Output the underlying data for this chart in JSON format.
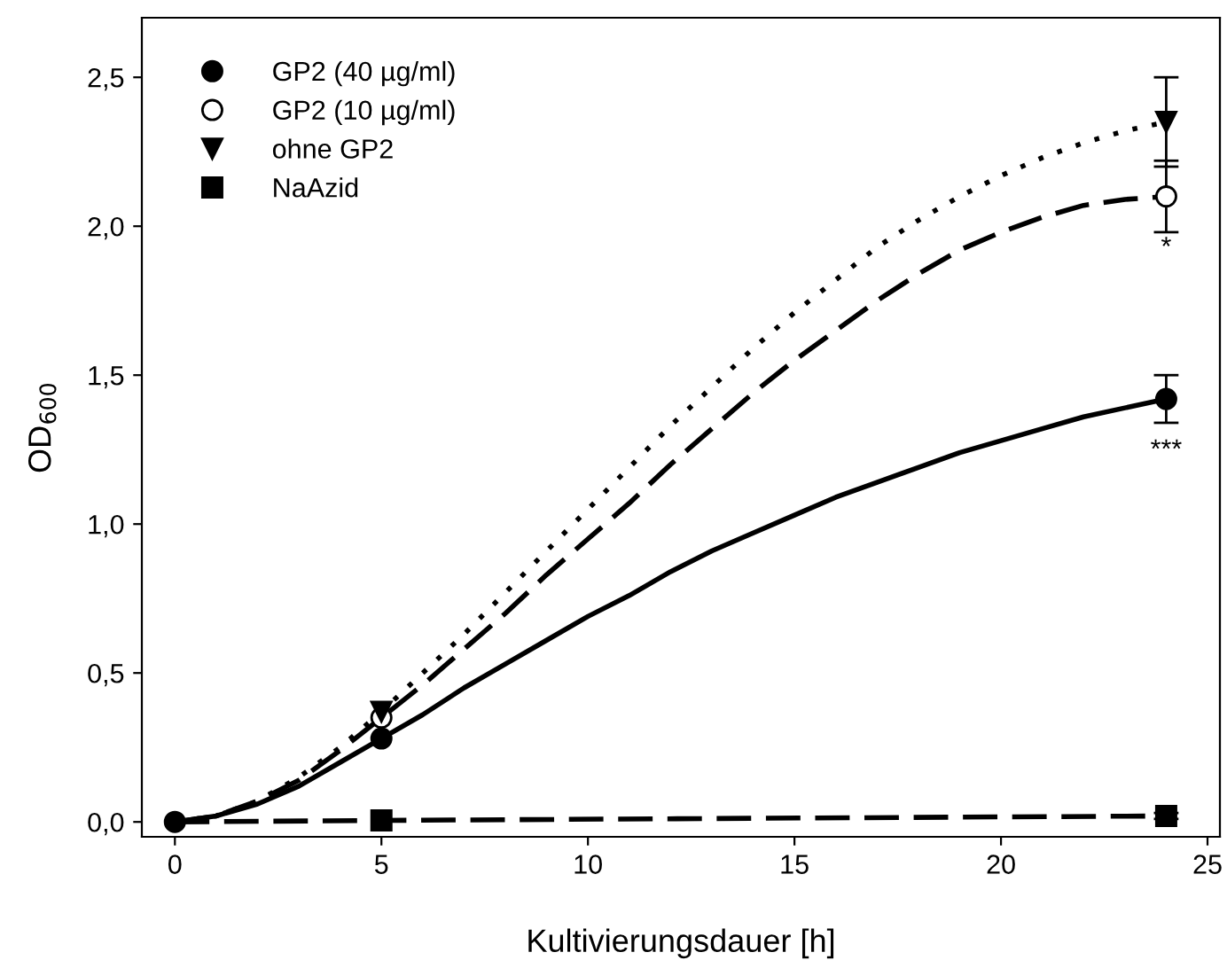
{
  "chart_data": {
    "type": "scatter",
    "xlabel": "Kultivierungsdauer [h]",
    "ylabel": "OD$_{600}$",
    "xlim": [
      -0.8,
      25.3
    ],
    "ylim": [
      -0.05,
      2.7
    ],
    "xticks": [
      0,
      5,
      10,
      15,
      20,
      25
    ],
    "yticks": [
      {
        "value": 0,
        "label": "0,0"
      },
      {
        "value": 0.5,
        "label": "0,5"
      },
      {
        "value": 1,
        "label": "1,0"
      },
      {
        "value": 1.5,
        "label": "1,5"
      },
      {
        "value": 2,
        "label": "2,0"
      },
      {
        "value": 2.5,
        "label": "2,5"
      }
    ],
    "grid": false,
    "legend": "top left",
    "series": [
      {
        "name": "GP2 (40 µg/ml)",
        "marker": "circle",
        "color": "#000000",
        "x": [
          0,
          5,
          24
        ],
        "values": [
          0,
          0.28,
          1.42
        ],
        "errors": [
          null,
          null,
          0.08
        ]
      },
      {
        "name": "GP2 (10 µg/ml)",
        "marker": "circle",
        "color": "#ffffff",
        "x": [
          5,
          24
        ],
        "values": [
          0.35,
          2.1
        ],
        "errors": [
          null,
          0.12
        ]
      },
      {
        "name": "ohne GP2",
        "marker": "triangle",
        "color": "#000000",
        "x": [
          5,
          24
        ],
        "values": [
          0.37,
          2.35
        ],
        "errors": [
          null,
          0.15
        ]
      },
      {
        "name": "NaAzid",
        "marker": "square",
        "color": "#000000",
        "x": [
          5,
          24
        ],
        "values": [
          0.005,
          0.02
        ],
        "errors": [
          null,
          0.01
        ]
      },
      {
        "type": "line",
        "line_style": "solid",
        "color": "#000000",
        "x": [
          0,
          1,
          2,
          3,
          4,
          5,
          6,
          7,
          8,
          9,
          10,
          11,
          12,
          13,
          14,
          15,
          16,
          17,
          18,
          19,
          20,
          21,
          22,
          23,
          24
        ],
        "values": [
          0,
          0.02,
          0.06,
          0.12,
          0.2,
          0.28,
          0.36,
          0.45,
          0.53,
          0.61,
          0.69,
          0.76,
          0.84,
          0.91,
          0.97,
          1.03,
          1.09,
          1.14,
          1.19,
          1.24,
          1.28,
          1.32,
          1.36,
          1.39,
          1.42
        ]
      },
      {
        "type": "line",
        "line_style": "dashed",
        "color": "#000000",
        "x": [
          0,
          1,
          2,
          3,
          4,
          5,
          6,
          7,
          8,
          9,
          10,
          11,
          12,
          13,
          14,
          15,
          16,
          17,
          18,
          19,
          20,
          21,
          22,
          23,
          24
        ],
        "values": [
          0,
          0.02,
          0.07,
          0.14,
          0.24,
          0.35,
          0.46,
          0.58,
          0.7,
          0.83,
          0.95,
          1.07,
          1.2,
          1.32,
          1.44,
          1.55,
          1.65,
          1.75,
          1.84,
          1.92,
          1.98,
          2.03,
          2.07,
          2.09,
          2.1
        ]
      },
      {
        "type": "line",
        "line_style": "dotted",
        "color": "#000000",
        "x": [
          0,
          1,
          2,
          3,
          4,
          5,
          6,
          7,
          8,
          9,
          10,
          11,
          12,
          13,
          14,
          15,
          16,
          17,
          18,
          19,
          20,
          21,
          22,
          23,
          24
        ],
        "values": [
          0,
          0.02,
          0.07,
          0.15,
          0.25,
          0.37,
          0.5,
          0.63,
          0.77,
          0.91,
          1.05,
          1.19,
          1.33,
          1.46,
          1.59,
          1.71,
          1.82,
          1.93,
          2.02,
          2.1,
          2.17,
          2.23,
          2.28,
          2.32,
          2.35
        ]
      },
      {
        "type": "line",
        "line_style": "dashed",
        "color": "#000000",
        "x": [
          0,
          5,
          24
        ],
        "values": [
          0,
          0.005,
          0.02
        ]
      }
    ],
    "annotations": [
      {
        "text": "*",
        "x": 24,
        "y": 2.1
      },
      {
        "text": "***",
        "x": 24,
        "y": 1.42
      }
    ]
  }
}
